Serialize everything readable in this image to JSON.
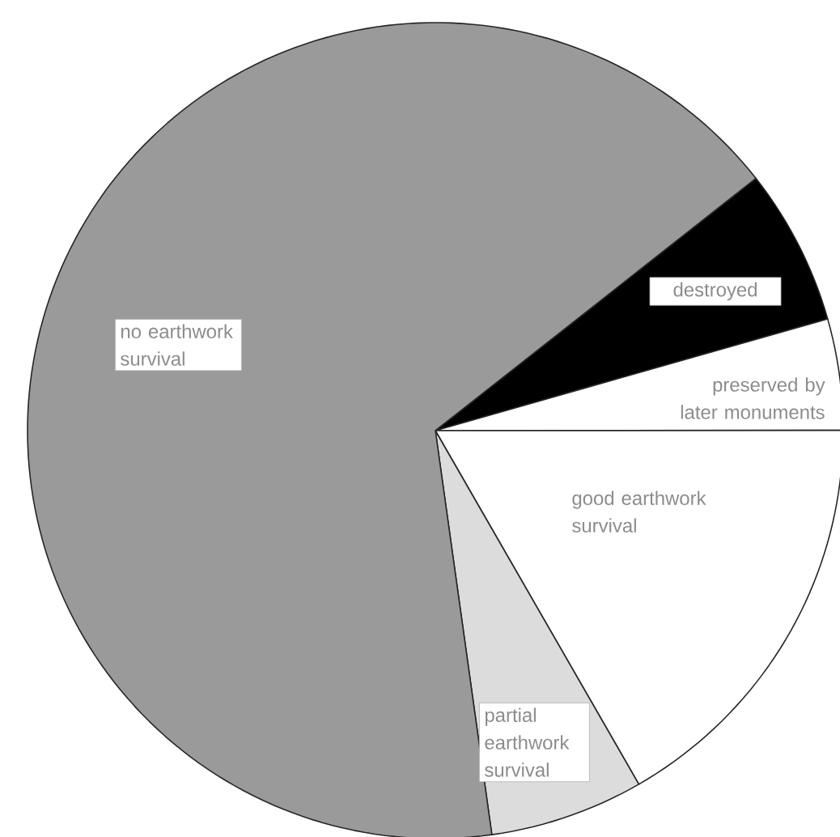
{
  "chart_data": {
    "type": "pie",
    "categories": [
      "destroyed",
      "preserved by later monuments",
      "good earthwork survival",
      "partial earthwork survival",
      "no earthwork survival"
    ],
    "values": [
      6.2,
      4.4,
      16.7,
      6.1,
      66.6
    ],
    "colors": [
      "#000000",
      "#ffffff",
      "#ffffff",
      "#dcdcdc",
      "#9a9a9a"
    ]
  }
}
